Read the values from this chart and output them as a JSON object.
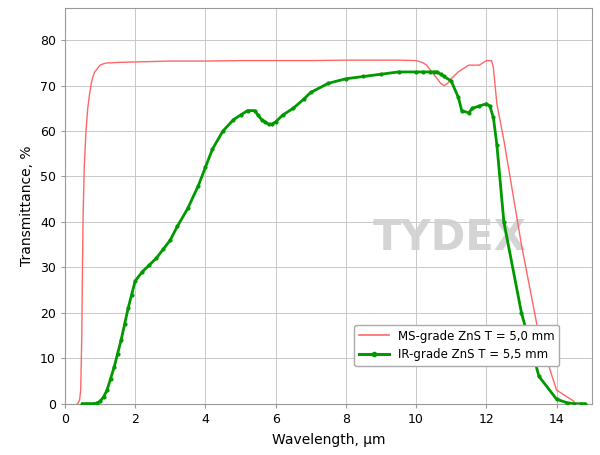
{
  "title": "",
  "xlabel": "Wavelength, μm",
  "ylabel": "Transmittance, %",
  "xlim": [
    0,
    15
  ],
  "ylim": [
    0,
    87
  ],
  "yticks": [
    0,
    10,
    20,
    30,
    40,
    50,
    60,
    70,
    80
  ],
  "xticks": [
    0,
    2,
    4,
    6,
    8,
    10,
    12,
    14
  ],
  "background_color": "#ffffff",
  "plot_bg_color": "#ffffff",
  "grid_color": "#c8c8c8",
  "ms_color": "#ff6666",
  "ir_color": "#009900",
  "legend_label_ms": "MS-grade ZnS T = 5,0 mm",
  "legend_label_ir": "IR-grade ZnS T = 5,5 mm",
  "watermark_color": "#d0d0d0",
  "ms_grade": {
    "x": [
      0.35,
      0.38,
      0.4,
      0.42,
      0.45,
      0.48,
      0.5,
      0.52,
      0.55,
      0.6,
      0.65,
      0.7,
      0.75,
      0.8,
      0.85,
      0.9,
      0.95,
      1.0,
      1.1,
      1.2,
      1.3,
      1.5,
      2.0,
      3.0,
      4.0,
      5.0,
      5.5,
      6.0,
      7.0,
      8.0,
      8.5,
      9.0,
      9.5,
      10.0,
      10.1,
      10.2,
      10.3,
      10.4,
      10.5,
      10.6,
      10.7,
      10.8,
      10.9,
      11.0,
      11.2,
      11.5,
      11.8,
      12.0,
      12.1,
      12.15,
      12.2,
      12.25,
      12.3,
      12.4,
      12.5,
      13.0,
      13.5,
      14.0,
      14.5
    ],
    "y": [
      0.0,
      0.2,
      0.5,
      1.0,
      3.0,
      15.0,
      30.0,
      42.0,
      52.0,
      60.0,
      65.0,
      68.0,
      70.5,
      72.0,
      73.0,
      73.5,
      74.0,
      74.5,
      74.8,
      75.0,
      75.0,
      75.1,
      75.2,
      75.4,
      75.4,
      75.5,
      75.5,
      75.5,
      75.5,
      75.6,
      75.6,
      75.6,
      75.6,
      75.5,
      75.3,
      75.0,
      74.5,
      73.5,
      72.5,
      71.5,
      70.5,
      70.0,
      70.5,
      71.5,
      73.0,
      74.5,
      74.5,
      75.5,
      75.5,
      75.5,
      74.0,
      70.0,
      66.0,
      62.0,
      58.0,
      35.0,
      15.0,
      3.0,
      0.5
    ]
  },
  "ir_grade": {
    "x": [
      0.5,
      0.6,
      0.7,
      0.8,
      0.9,
      1.0,
      1.1,
      1.2,
      1.3,
      1.4,
      1.5,
      1.6,
      1.7,
      1.8,
      1.9,
      2.0,
      2.2,
      2.4,
      2.6,
      2.8,
      3.0,
      3.2,
      3.5,
      3.8,
      4.0,
      4.2,
      4.5,
      4.8,
      5.0,
      5.2,
      5.4,
      5.5,
      5.6,
      5.7,
      5.8,
      5.9,
      6.0,
      6.2,
      6.5,
      6.8,
      7.0,
      7.5,
      8.0,
      8.5,
      9.0,
      9.5,
      10.0,
      10.2,
      10.4,
      10.5,
      10.6,
      10.7,
      10.8,
      11.0,
      11.2,
      11.3,
      11.5,
      11.6,
      11.8,
      12.0,
      12.1,
      12.2,
      12.3,
      12.5,
      13.0,
      13.5,
      14.0,
      14.3,
      14.5,
      14.7,
      14.8
    ],
    "y": [
      0.0,
      0.0,
      0.0,
      0.0,
      0.1,
      0.5,
      1.5,
      3.0,
      5.5,
      8.0,
      11.0,
      14.0,
      17.5,
      21.0,
      24.0,
      27.0,
      29.0,
      30.5,
      32.0,
      34.0,
      36.0,
      39.0,
      43.0,
      48.0,
      52.0,
      56.0,
      60.0,
      62.5,
      63.5,
      64.5,
      64.5,
      63.5,
      62.5,
      62.0,
      61.5,
      61.5,
      62.0,
      63.5,
      65.0,
      67.0,
      68.5,
      70.5,
      71.5,
      72.0,
      72.5,
      73.0,
      73.0,
      73.0,
      73.0,
      73.0,
      73.0,
      72.5,
      72.0,
      71.0,
      67.5,
      64.5,
      64.0,
      65.0,
      65.5,
      66.0,
      65.5,
      63.0,
      57.0,
      40.0,
      20.0,
      6.0,
      1.0,
      0.2,
      0.0,
      0.0,
      0.0
    ]
  }
}
